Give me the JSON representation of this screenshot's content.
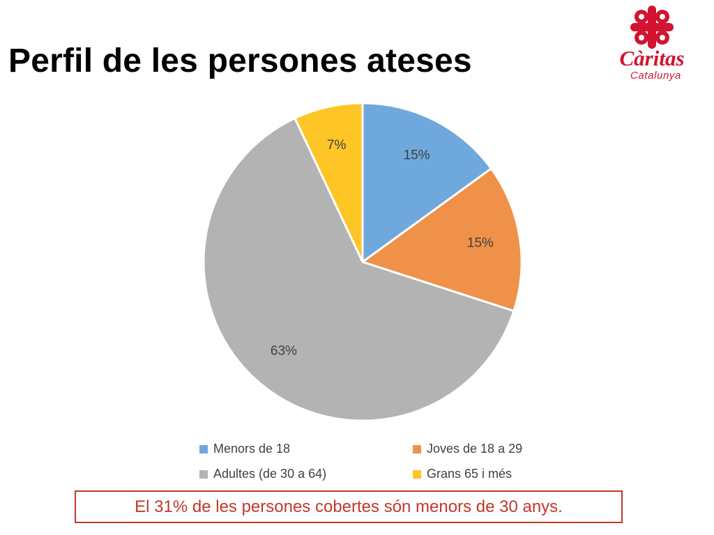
{
  "page": {
    "title": "Perfil de les persones ateses",
    "note": "El 31% de les persones cobertes són menors de 30 anys."
  },
  "logo": {
    "name": "Càritas",
    "subtitle": "Catalunya",
    "color": "#d3132f",
    "icon": "caritas-cross-icon"
  },
  "chart_data": {
    "type": "pie",
    "categories": [
      "Menors de 18",
      "Joves de 18 a 29",
      "Adultes (de 30 a 64)",
      "Grans 65 i més"
    ],
    "values": [
      15,
      15,
      63,
      7
    ],
    "labels": [
      "15%",
      "15%",
      "63%",
      "7%"
    ],
    "colors": [
      "#6fa8dc",
      "#f0914a",
      "#b3b3b3",
      "#fec527"
    ],
    "legend_position": "bottom"
  }
}
